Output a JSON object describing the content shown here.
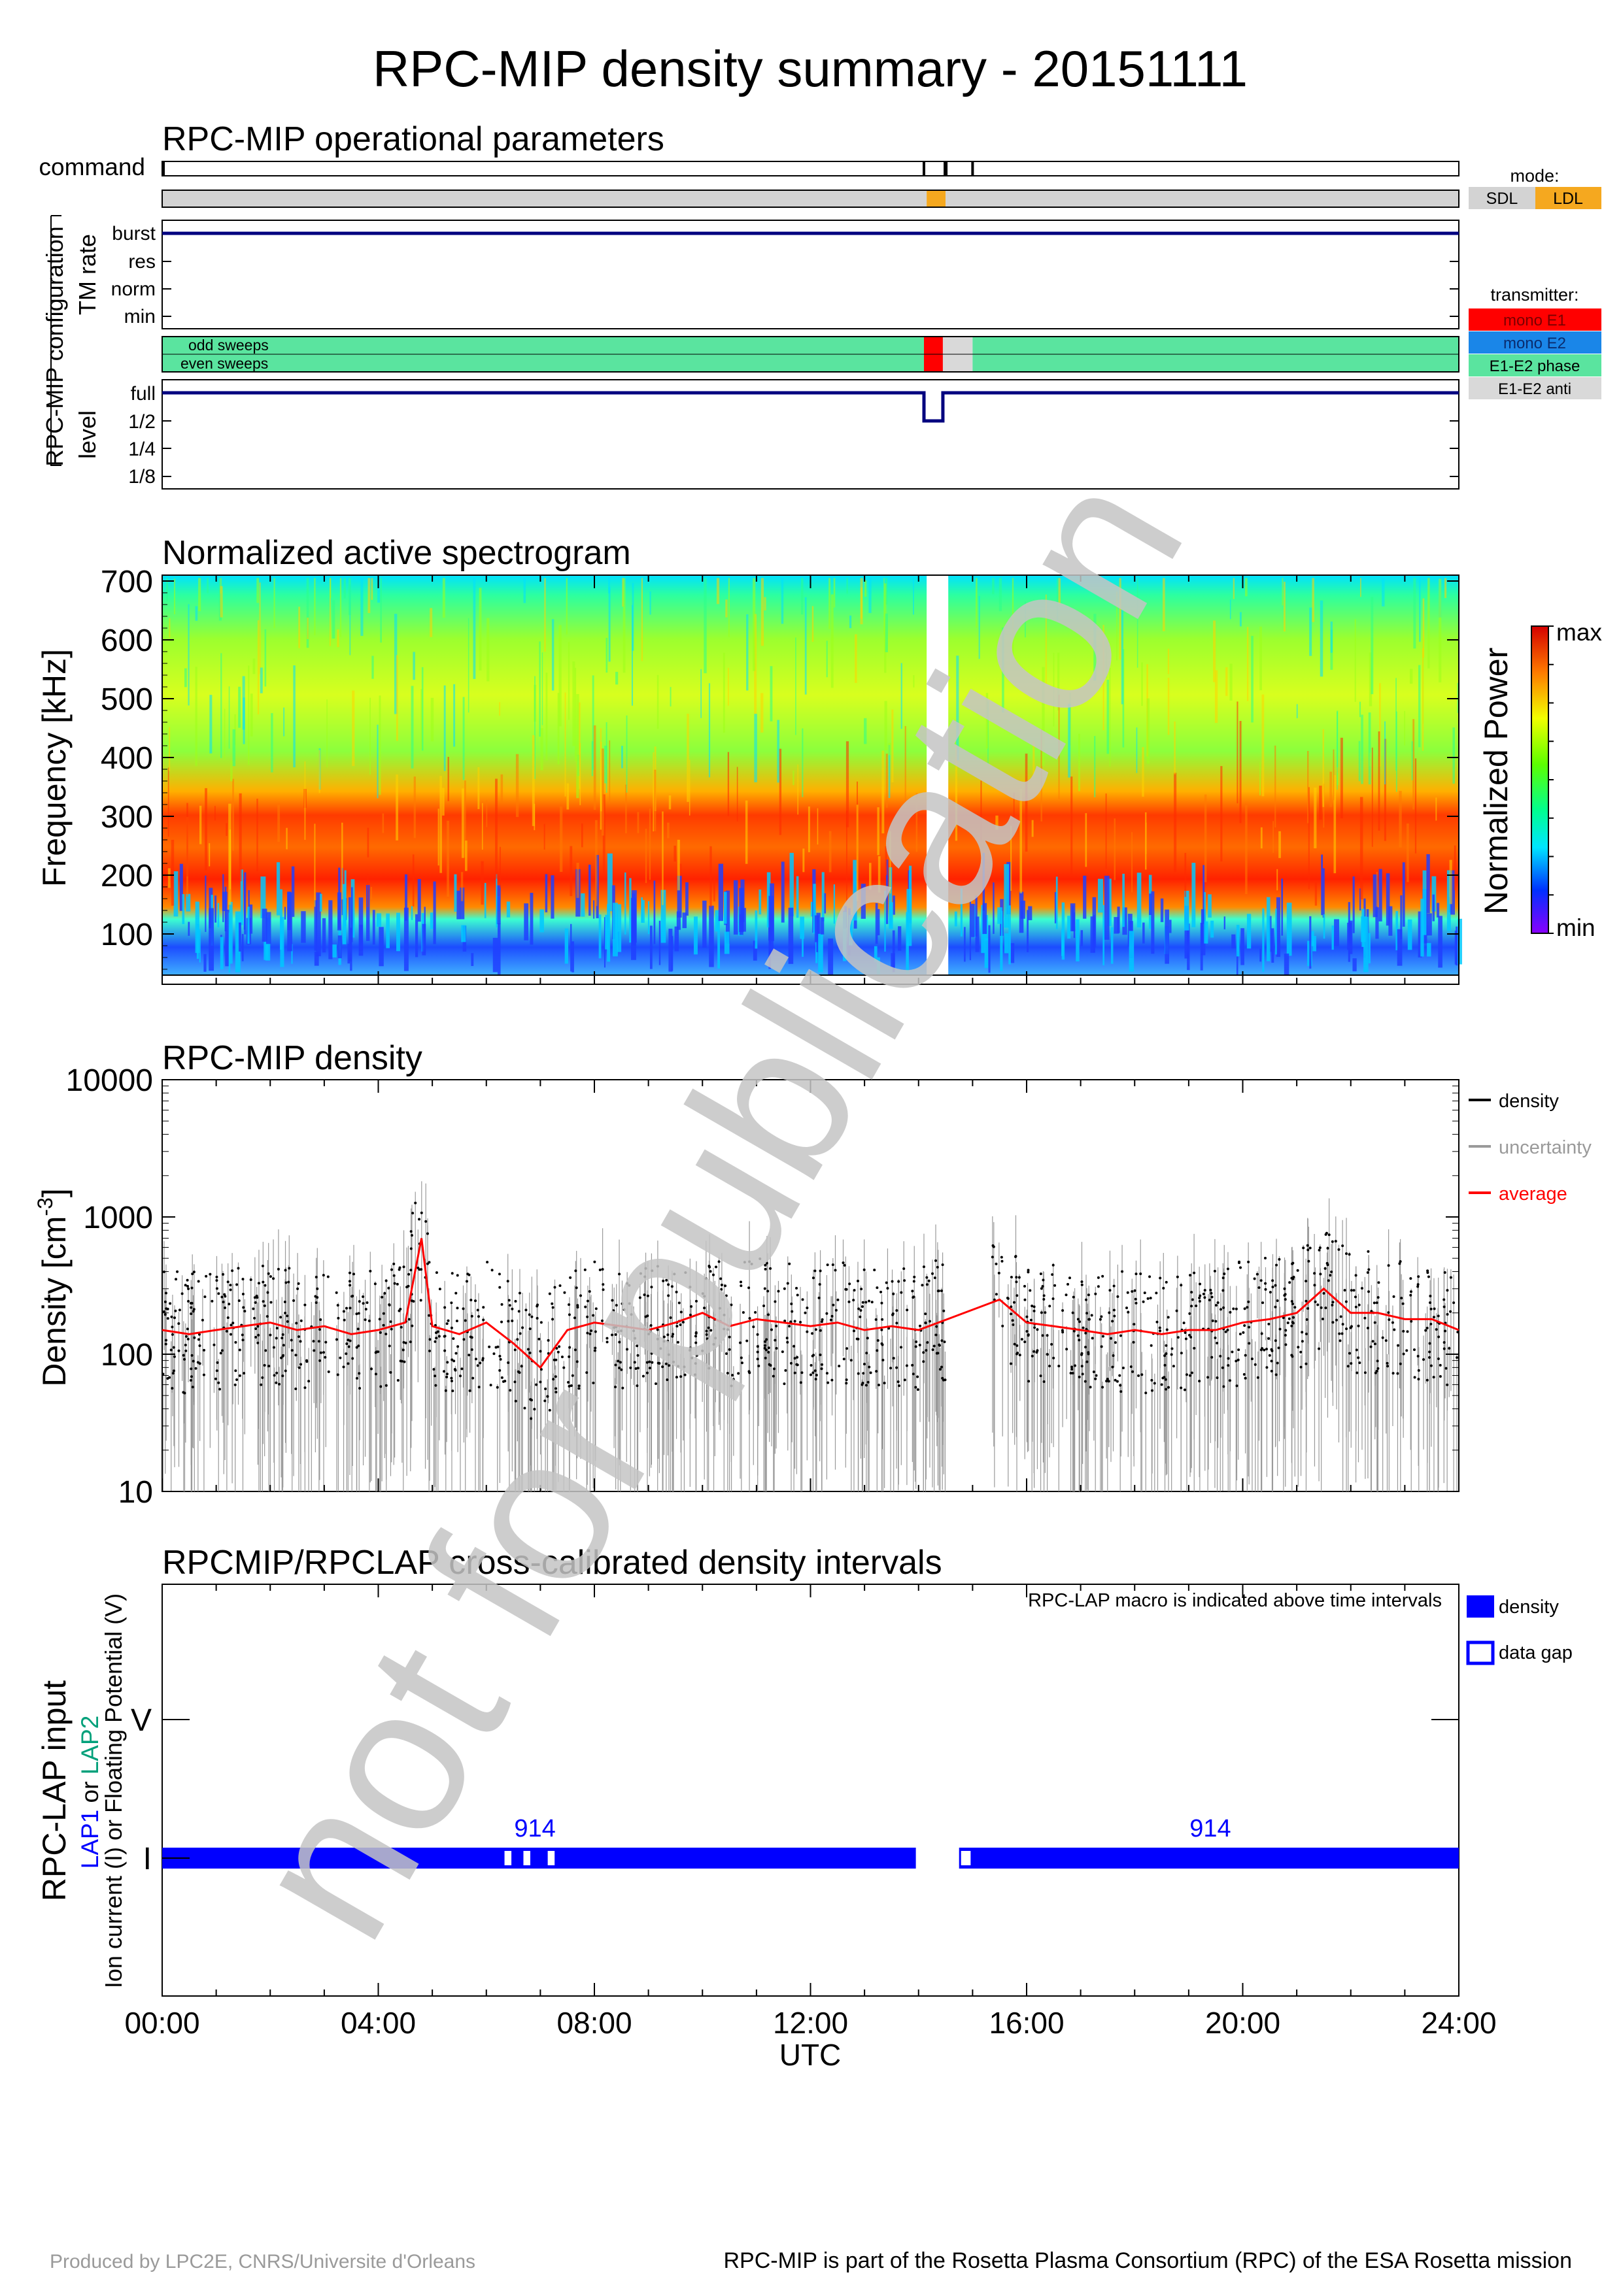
{
  "page_title": "RPC-MIP density summary - 20151111",
  "footer": {
    "left": "Produced by LPC2E, CNRS/Universite d'Orleans",
    "right": "RPC-MIP is part of the Rosetta Plasma Consortium (RPC) of the ESA Rosetta mission"
  },
  "watermark": "not for publication",
  "colors": {
    "navy": "#00007f",
    "sdl": "#d3d3d3",
    "ldl": "#f5a81f",
    "mono_e1": "#ff0000",
    "mono_e2": "#1a86e8",
    "e1e2_phase": "#5ae49f",
    "e1e2_anti": "#d9d9d9",
    "density_blue": "#0000ff",
    "average_red": "#ff0000",
    "uncertainty_grey": "#9a9a9a"
  },
  "time_axis": {
    "ticks": [
      "00:00",
      "04:00",
      "08:00",
      "12:00",
      "16:00",
      "20:00",
      "24:00"
    ],
    "label": "UTC",
    "range_hours": [
      0,
      24
    ]
  },
  "panel1": {
    "title": "RPC-MIP operational parameters",
    "command_label": "command",
    "command_times_h": [
      14.1,
      14.5,
      15.0
    ],
    "mode_legend": {
      "title": "mode:",
      "items": [
        "SDL",
        "LDL"
      ]
    },
    "mode_segments": [
      {
        "start_h": 0,
        "end_h": 14.15,
        "mode": "SDL"
      },
      {
        "start_h": 14.15,
        "end_h": 14.5,
        "mode": "LDL"
      },
      {
        "start_h": 14.5,
        "end_h": 24,
        "mode": "SDL"
      }
    ],
    "group_label": "RPC-MIP configuration",
    "tm_rate_label": "TM rate",
    "tm_rate_levels": [
      "burst",
      "res",
      "norm",
      "min"
    ],
    "tm_rate_value": "burst",
    "sweeps_labels": {
      "odd": "odd sweeps",
      "even": "even sweeps"
    },
    "transmitter_legend": {
      "title": "transmitter:",
      "items": [
        "mono E1",
        "mono E2",
        "E1-E2 phase",
        "E1-E2 anti"
      ]
    },
    "odd_sweeps": [
      {
        "start_h": 0,
        "end_h": 14.1,
        "tx": "E1-E2 phase"
      },
      {
        "start_h": 14.1,
        "end_h": 14.45,
        "tx": "mono E1"
      },
      {
        "start_h": 14.45,
        "end_h": 15.0,
        "tx": "E1-E2 anti"
      },
      {
        "start_h": 15.0,
        "end_h": 24,
        "tx": "E1-E2 phase"
      }
    ],
    "even_sweeps": [
      {
        "start_h": 0,
        "end_h": 14.1,
        "tx": "E1-E2 phase"
      },
      {
        "start_h": 14.1,
        "end_h": 14.45,
        "tx": "mono E1"
      },
      {
        "start_h": 14.45,
        "end_h": 15.0,
        "tx": "E1-E2 anti"
      },
      {
        "start_h": 15.0,
        "end_h": 24,
        "tx": "E1-E2 phase"
      }
    ],
    "level_label": "level",
    "level_levels": [
      "full",
      "1/2",
      "1/4",
      "1/8"
    ],
    "level_segments": [
      {
        "start_h": 0,
        "end_h": 14.1,
        "level": "full"
      },
      {
        "start_h": 14.1,
        "end_h": 14.45,
        "level": "1/2"
      },
      {
        "start_h": 14.45,
        "end_h": 24,
        "level": "full"
      }
    ]
  },
  "panel2": {
    "title": "Normalized active spectrogram",
    "ylabel": "Frequency [kHz]",
    "yticks": [
      100,
      200,
      300,
      400,
      500,
      600,
      700
    ],
    "ylim": [
      30,
      710
    ],
    "data_gap_h": [
      14.15,
      14.55
    ],
    "colorbar": {
      "label": "Normalized Power",
      "max": "max",
      "min": "min"
    }
  },
  "panel3": {
    "title": "RPC-MIP density",
    "ylabel": "Density [cm",
    "ylabel_exp": "-3",
    "ylabel_close": "]",
    "yticks": [
      "10",
      "100",
      "1000",
      "10000"
    ],
    "ylim": [
      10,
      10000
    ],
    "yscale": "log",
    "legend": [
      "density",
      "uncertainty",
      "average"
    ]
  },
  "panel4": {
    "title": "RPCMIP/RPCLAP cross-calibrated density intervals",
    "note": "RPC-LAP macro is indicated above time intervals",
    "ylabel_main": "RPC-LAP input",
    "ylabel_lap1": "LAP1",
    "ylabel_or": " or ",
    "ylabel_lap2": "LAP2",
    "ylabel_sub": "Ion current (I) or Floating Potential (V)",
    "ytick_labels": [
      "V",
      "I"
    ],
    "legend": [
      "density",
      "data gap"
    ],
    "macro_labels": [
      {
        "text": "914",
        "time_h": 6.9
      },
      {
        "text": "914",
        "time_h": 19.4
      }
    ],
    "intervals": [
      {
        "start_h": 0,
        "end_h": 13.95
      },
      {
        "start_h": 14.75,
        "end_h": 24
      }
    ],
    "gaps": [
      {
        "start_h": 6.3,
        "end_h": 6.5
      },
      {
        "start_h": 6.65,
        "end_h": 6.85
      },
      {
        "start_h": 7.1,
        "end_h": 7.3
      },
      {
        "start_h": 14.75,
        "end_h": 15.0
      }
    ]
  },
  "chart_data": [
    {
      "type": "line",
      "title": "RPC-MIP density",
      "xlabel": "UTC",
      "ylabel": "Density [cm-3]",
      "xlim": [
        0,
        24
      ],
      "ylim": [
        10,
        10000
      ],
      "yscale": "log",
      "series": [
        {
          "name": "average",
          "x": [
            0,
            0.5,
            1,
            1.5,
            2,
            2.5,
            3,
            3.5,
            4,
            4.5,
            4.8,
            5,
            5.5,
            6,
            6.5,
            7,
            7.5,
            8,
            8.5,
            9,
            9.5,
            10,
            10.5,
            11,
            11.5,
            12,
            12.5,
            13,
            13.5,
            14,
            15.5,
            16,
            16.5,
            17,
            17.5,
            18,
            18.5,
            19,
            19.5,
            20,
            20.5,
            21,
            21.5,
            22,
            22.5,
            23,
            23.5,
            24
          ],
          "y": [
            150,
            140,
            150,
            160,
            170,
            150,
            160,
            140,
            150,
            170,
            700,
            160,
            140,
            170,
            120,
            80,
            150,
            170,
            160,
            150,
            170,
            200,
            160,
            180,
            170,
            160,
            170,
            150,
            160,
            150,
            250,
            170,
            160,
            150,
            140,
            150,
            140,
            150,
            150,
            170,
            180,
            200,
            300,
            200,
            200,
            180,
            180,
            150
          ]
        }
      ]
    }
  ]
}
